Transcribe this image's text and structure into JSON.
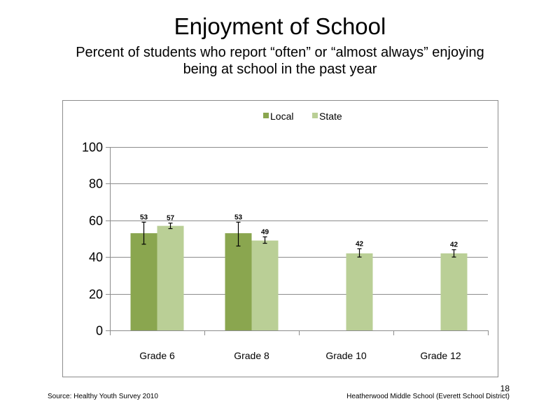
{
  "slide": {
    "title": "Enjoyment of School",
    "subtitle_line1": "Percent of students who report “often” or “almost always” enjoying",
    "subtitle_line2": "being at school in the past year",
    "source": "Source: Healthy Youth Survey 2010",
    "school": "Heatherwood Middle  School (Everett School District)",
    "page_number": "18"
  },
  "chart_data": {
    "type": "bar",
    "title": "",
    "xlabel": "",
    "ylabel": "",
    "categories": [
      "Grade 6",
      "Grade 8",
      "Grade 10",
      "Grade 12"
    ],
    "ylim": [
      0,
      100
    ],
    "yticks": [
      0,
      20,
      40,
      60,
      80,
      100
    ],
    "grid": true,
    "legend_position": "top",
    "series": [
      {
        "name": "Local",
        "color": "#8aa64f",
        "values": [
          53,
          53,
          null,
          null
        ],
        "labels": [
          "53",
          "53",
          "",
          ""
        ],
        "error_low": [
          47,
          46,
          null,
          null
        ],
        "error_high": [
          59,
          59,
          null,
          null
        ]
      },
      {
        "name": "State",
        "color": "#bacf96",
        "values": [
          57,
          49,
          42,
          42
        ],
        "labels": [
          "57",
          "49",
          "42",
          "42"
        ],
        "error_low": [
          55.5,
          47.5,
          40,
          40
        ],
        "error_high": [
          58.5,
          51,
          44.5,
          44
        ]
      }
    ]
  }
}
